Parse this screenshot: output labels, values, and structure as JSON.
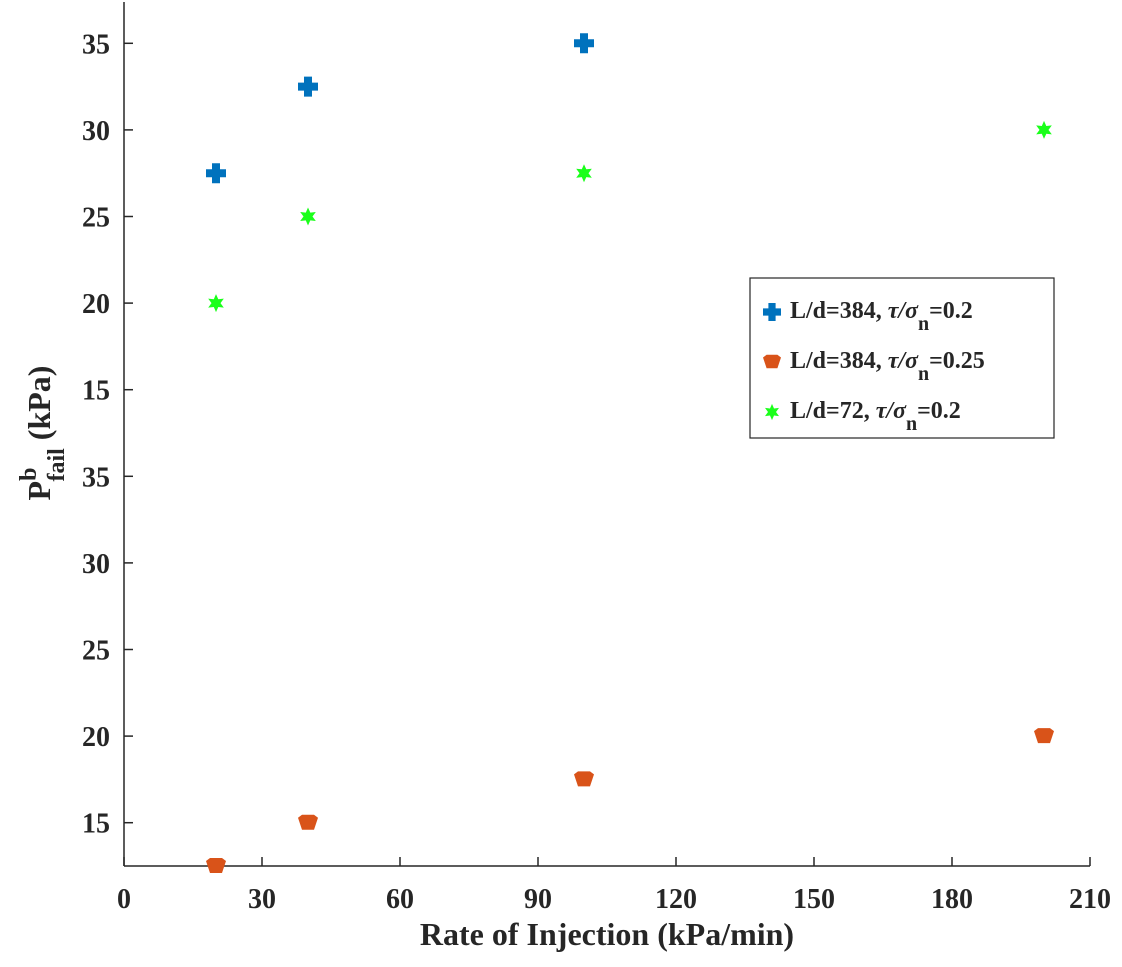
{
  "chart_data": {
    "type": "scatter",
    "xlabel": "Rate of Injection (kPa/min)",
    "ylabel": {
      "base": "P",
      "sup": "b",
      "sub": "fail",
      "unit": "(kPa)"
    },
    "xlim": [
      0,
      210
    ],
    "xticks": [
      0,
      30,
      60,
      90,
      120,
      150,
      180,
      210
    ],
    "y_panels": [
      {
        "ylim": [
          12.5,
          37.5
        ],
        "yticks": [
          15,
          20,
          25,
          30,
          35
        ]
      },
      {
        "ylim": [
          12.5,
          37.5
        ],
        "yticks": [
          15,
          20,
          25,
          30,
          35
        ]
      }
    ],
    "series": [
      {
        "name": "L/d=384, τ/σn=0.2",
        "color": "#0072bd",
        "marker": "plus",
        "panel": 1,
        "x": [
          20,
          40,
          100
        ],
        "values": [
          27.5,
          32.5,
          35
        ]
      },
      {
        "name": "L/d=384, τ/σn=0.25",
        "color": "#d95319",
        "marker": "hexagon",
        "panel": 0,
        "x": [
          20,
          40,
          100,
          200
        ],
        "values": [
          12.5,
          15,
          17.5,
          20
        ]
      },
      {
        "name": "L/d=72, τ/σn=0.2",
        "color": "#1aff1a",
        "marker": "star",
        "panel": 1,
        "x": [
          20,
          40,
          100,
          200
        ],
        "values": [
          20,
          25,
          27.5,
          30
        ]
      }
    ]
  }
}
